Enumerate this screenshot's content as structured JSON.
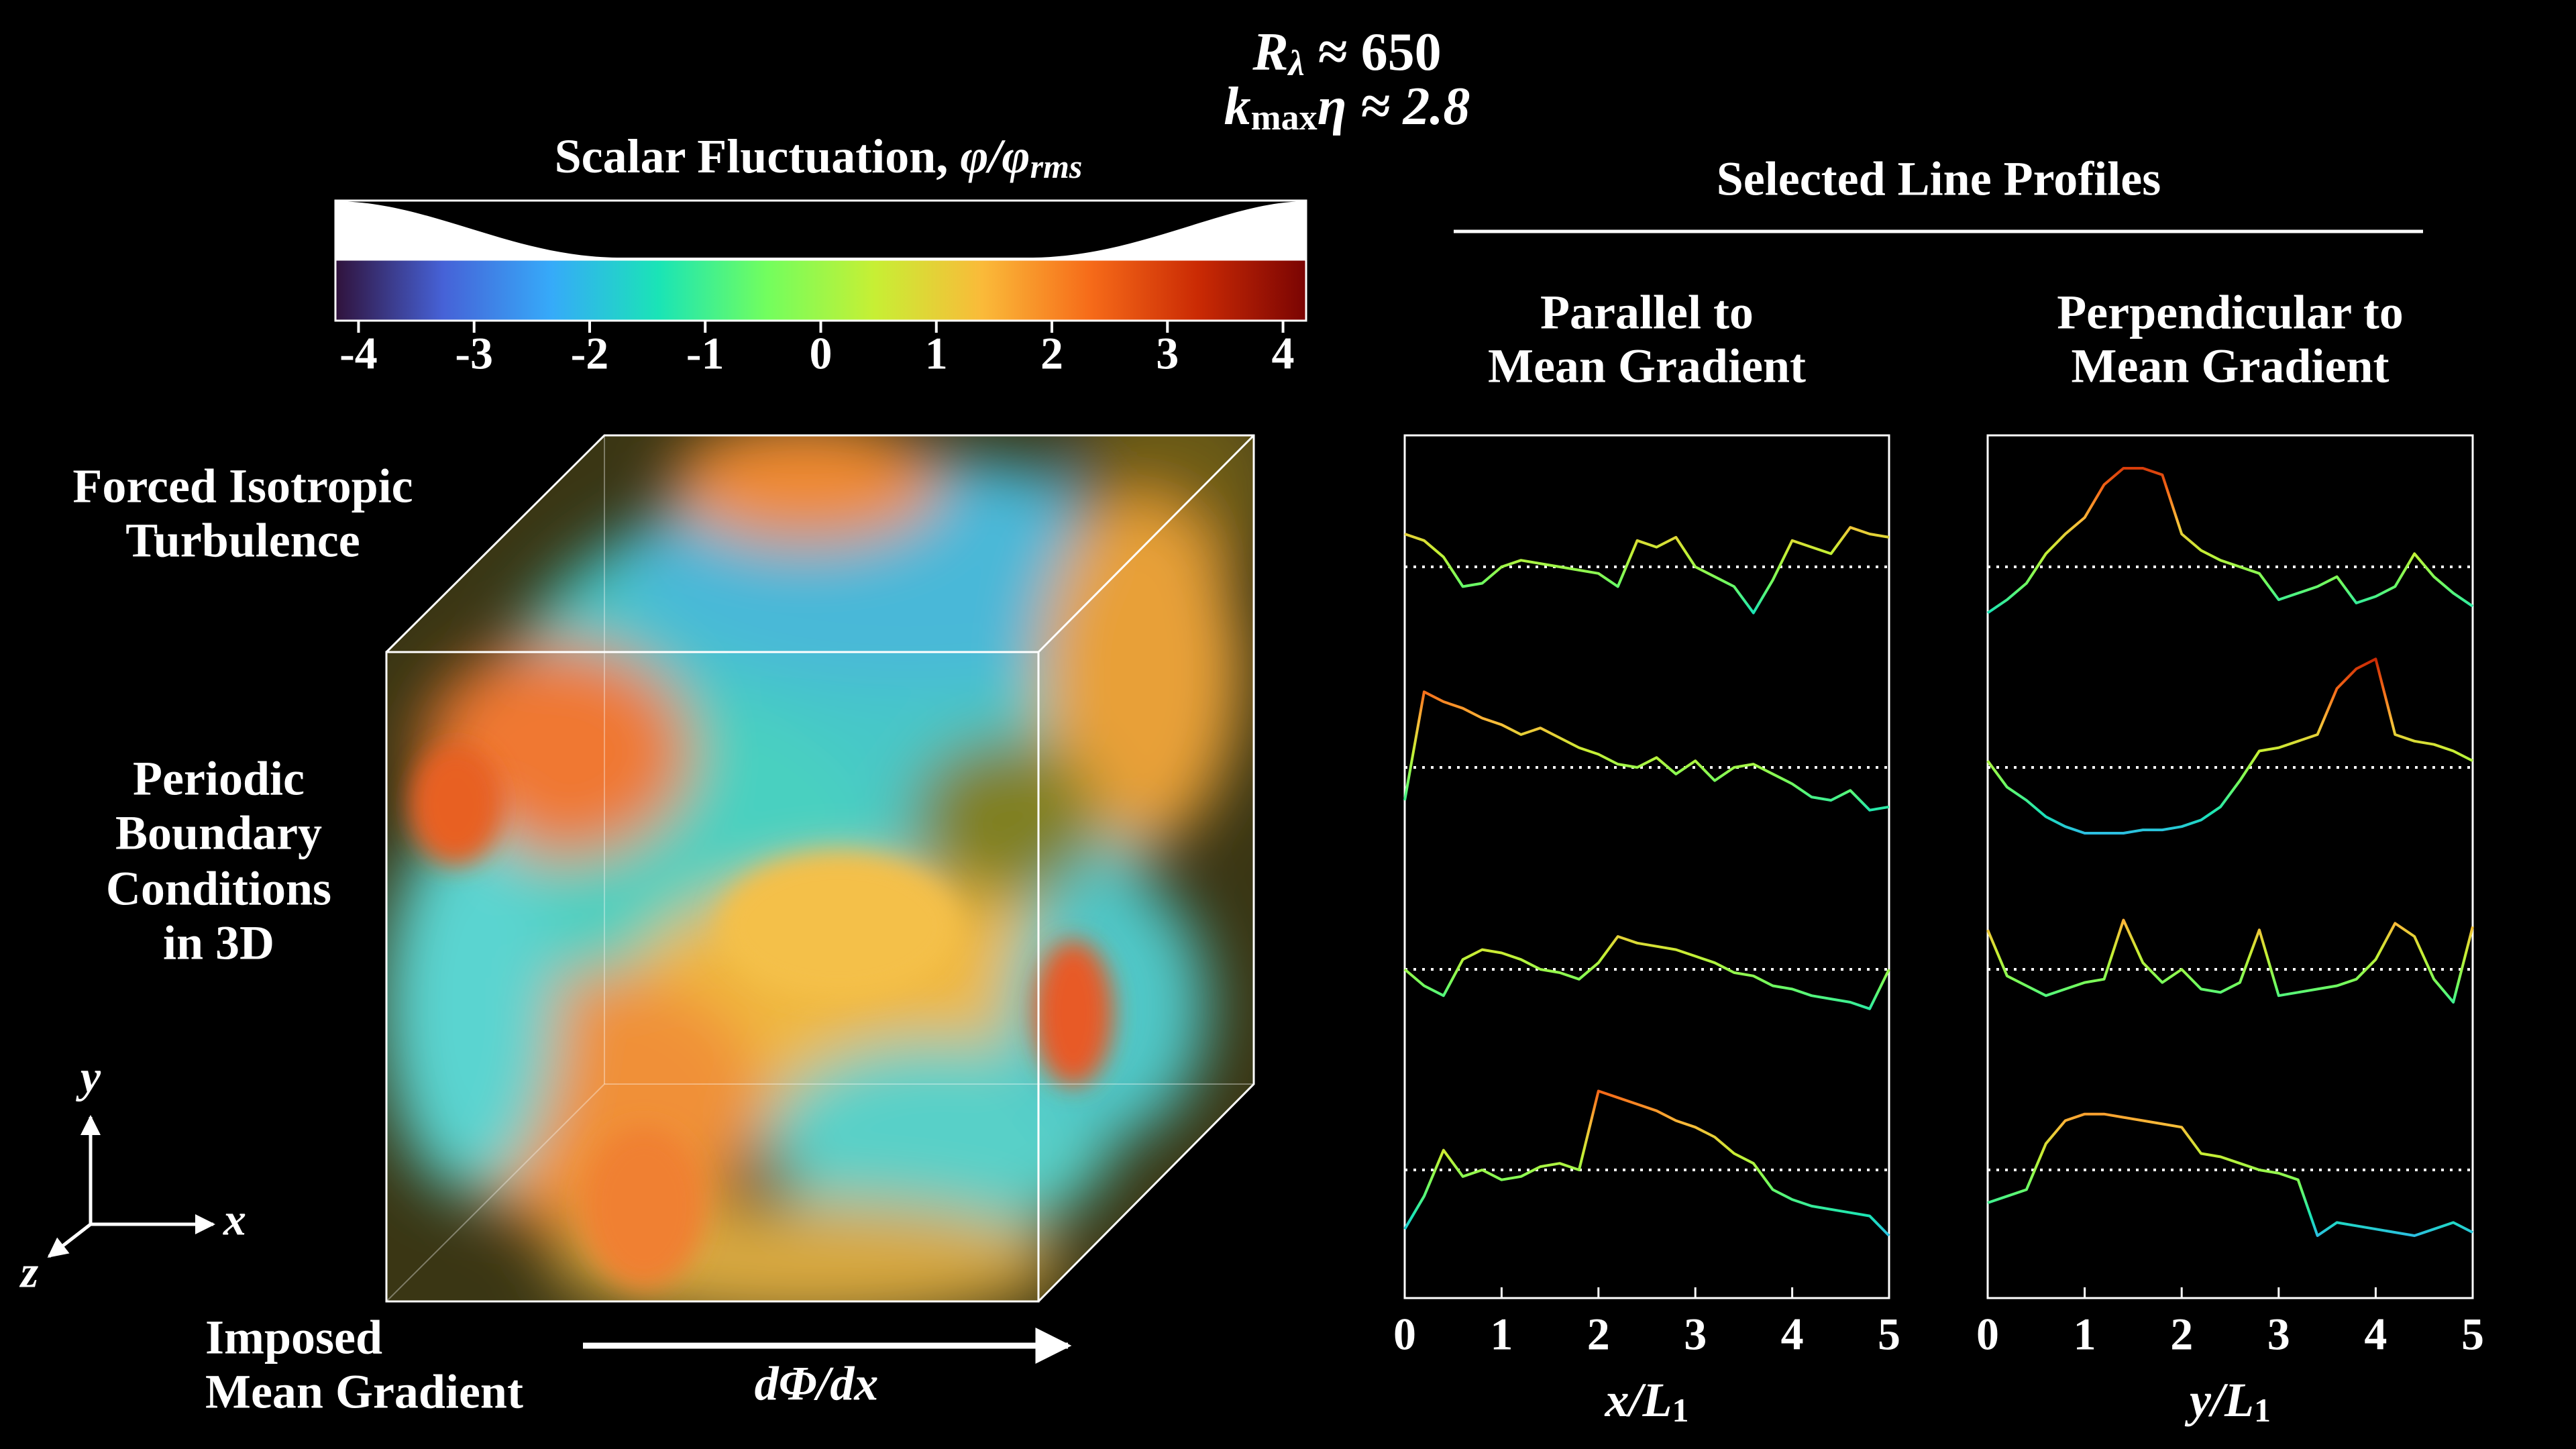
{
  "header": [
    {
      "main": "R",
      "sub": "λ",
      "rest": " ≈ 650"
    },
    {
      "main": "k",
      "sub": "max",
      "rest": "η ≈ 2.8"
    }
  ],
  "colorbar": {
    "title": {
      "text": "Scalar Fluctuation, ",
      "math": "φ/φ",
      "sub": "rms"
    },
    "lim": [
      -4.2,
      4.2
    ],
    "ticks": [
      -4,
      -3,
      -2,
      -1,
      0,
      1,
      2,
      3,
      4
    ],
    "colors": [
      "#30123b",
      "#4662d7",
      "#36aaf9",
      "#1ae4b6",
      "#72fe5e",
      "#c7ef34",
      "#faba39",
      "#f66b19",
      "#ca2a04",
      "#7a0403"
    ]
  },
  "left_labels": {
    "turbulence": [
      "Forced Isotropic",
      "Turbulence"
    ],
    "periodic": [
      "Periodic",
      "Boundary",
      "Conditions",
      "in 3D"
    ],
    "gradient": [
      "Imposed",
      "Mean Gradient"
    ],
    "gradient_symbol": "dΦ/dx"
  },
  "axes_triad": {
    "x": "x",
    "y": "y",
    "z": "z"
  },
  "profiles_title": "Selected Line Profiles",
  "chart_data": [
    {
      "type": "line",
      "title": [
        "Parallel to",
        "Mean Gradient"
      ],
      "xlabel": {
        "var": "x",
        "rest": "/L",
        "sub": "1"
      },
      "x": [
        0,
        0.2,
        0.4,
        0.6,
        0.8,
        1,
        1.2,
        1.4,
        1.6,
        1.8,
        2,
        2.2,
        2.4,
        2.6,
        2.8,
        3,
        3.2,
        3.4,
        3.6,
        3.8,
        4,
        4.2,
        4.4,
        4.6,
        4.8,
        5
      ],
      "xlim": [
        0,
        5
      ],
      "xticks": [
        0,
        1,
        2,
        3,
        4,
        5
      ],
      "series": [
        {
          "values": [
            1,
            0.8,
            0.3,
            -0.6,
            -0.5,
            0,
            0.2,
            0.1,
            0,
            -0.1,
            -0.2,
            -0.6,
            0.8,
            0.6,
            0.9,
            0,
            -0.3,
            -0.6,
            -1.4,
            -0.4,
            0.8,
            0.6,
            0.4,
            1.2,
            1.0,
            0.9
          ]
        },
        {
          "values": [
            -1,
            2.3,
            2.0,
            1.8,
            1.5,
            1.3,
            1.0,
            1.2,
            0.9,
            0.6,
            0.4,
            0.1,
            0,
            0.3,
            -0.2,
            0.2,
            -0.4,
            0,
            0.1,
            -0.2,
            -0.5,
            -0.9,
            -1,
            -0.7,
            -1.3,
            -1.2
          ]
        },
        {
          "values": [
            0,
            -0.5,
            -0.8,
            0.3,
            0.6,
            0.5,
            0.3,
            0,
            -0.1,
            -0.3,
            0.2,
            1.0,
            0.8,
            0.7,
            0.6,
            0.4,
            0.2,
            -0.1,
            -0.2,
            -0.5,
            -0.6,
            -0.8,
            -0.9,
            -1.0,
            -1.2,
            0
          ]
        },
        {
          "values": [
            -1.8,
            -0.8,
            0.6,
            -0.2,
            0,
            -0.3,
            -0.2,
            0.1,
            0.2,
            0,
            2.4,
            2.2,
            2.0,
            1.8,
            1.5,
            1.3,
            1.0,
            0.5,
            0.2,
            -0.6,
            -0.9,
            -1.1,
            -1.2,
            -1.3,
            -1.4,
            -2
          ]
        }
      ]
    },
    {
      "type": "line",
      "title": [
        "Perpendicular to",
        "Mean Gradient"
      ],
      "xlabel": {
        "var": "y",
        "rest": "/L",
        "sub": "1"
      },
      "x": [
        0,
        0.2,
        0.4,
        0.6,
        0.8,
        1,
        1.2,
        1.4,
        1.6,
        1.8,
        2,
        2.2,
        2.4,
        2.6,
        2.8,
        3,
        3.2,
        3.4,
        3.6,
        3.8,
        4,
        4.2,
        4.4,
        4.6,
        4.8,
        5
      ],
      "xlim": [
        0,
        5
      ],
      "xticks": [
        0,
        1,
        2,
        3,
        4,
        5
      ],
      "series": [
        {
          "values": [
            -1.4,
            -1,
            -0.5,
            0.4,
            1.0,
            1.5,
            2.5,
            3.0,
            3.0,
            2.8,
            1.0,
            0.5,
            0.2,
            0,
            -0.2,
            -1.0,
            -0.8,
            -0.6,
            -0.3,
            -1.1,
            -0.9,
            -0.6,
            0.4,
            -0.3,
            -0.8,
            -1.2
          ]
        },
        {
          "values": [
            0.2,
            -0.6,
            -1.0,
            -1.5,
            -1.8,
            -2.0,
            -2.0,
            -2.0,
            -1.9,
            -1.9,
            -1.8,
            -1.6,
            -1.2,
            -0.4,
            0.5,
            0.6,
            0.8,
            1.0,
            2.4,
            3.0,
            3.3,
            1.0,
            0.8,
            0.7,
            0.5,
            0.2
          ]
        },
        {
          "values": [
            1.2,
            -0.2,
            -0.5,
            -0.8,
            -0.6,
            -0.4,
            -0.3,
            1.5,
            0.2,
            -0.4,
            0,
            -0.6,
            -0.7,
            -0.4,
            1.2,
            -0.8,
            -0.7,
            -0.6,
            -0.5,
            -0.3,
            0.3,
            1.4,
            1.0,
            -0.3,
            -1.0,
            1.3
          ]
        },
        {
          "values": [
            -1,
            -0.8,
            -0.6,
            0.8,
            1.5,
            1.7,
            1.7,
            1.6,
            1.5,
            1.4,
            1.3,
            0.5,
            0.4,
            0.2,
            0,
            -0.1,
            -0.3,
            -2.0,
            -1.6,
            -1.7,
            -1.8,
            -1.9,
            -2.0,
            -1.8,
            -1.6,
            -1.9
          ]
        }
      ]
    }
  ]
}
